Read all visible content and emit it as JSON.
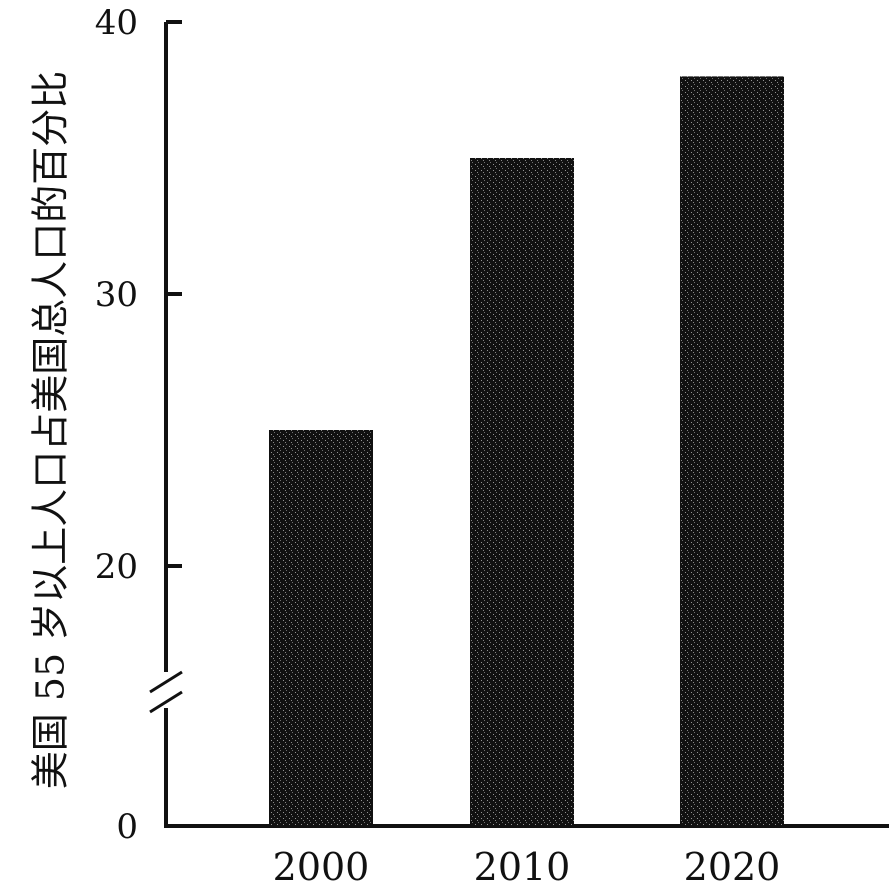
{
  "chart_data": {
    "type": "bar",
    "ylabel": "美国 55 岁以上人口占美国总人口的百分比",
    "categories": [
      "2000",
      "2010",
      "2020"
    ],
    "values": [
      25,
      35,
      38
    ],
    "y_ticks": [
      "0",
      "20",
      "30",
      "40"
    ],
    "ylim": [
      0,
      40
    ],
    "axis_break": true,
    "grid": false,
    "bar_color": "#111111"
  }
}
